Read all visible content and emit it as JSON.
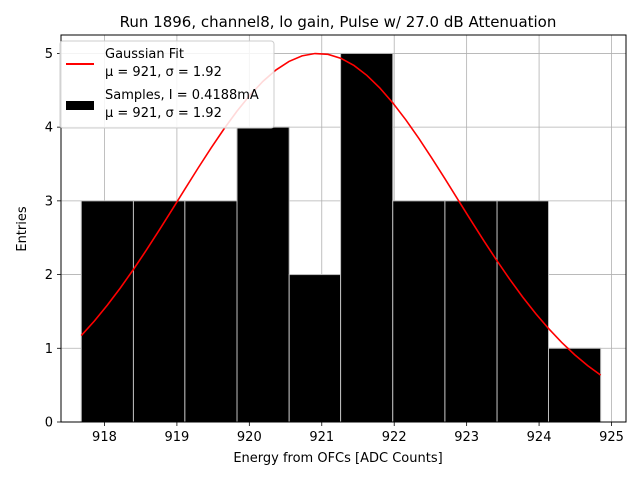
{
  "chart_data": {
    "type": "bar",
    "title": "Run 1896, channel8, lo gain, Pulse w/ 27.0 dB Attenuation",
    "xlabel": "Energy from OFCs [ADC Counts]",
    "ylabel": "Entries",
    "xlim": [
      917.4,
      925.2
    ],
    "ylim": [
      0,
      5.25
    ],
    "xticks": [
      918,
      919,
      920,
      921,
      922,
      923,
      924,
      925
    ],
    "yticks": [
      0,
      1,
      2,
      3,
      4,
      5
    ],
    "grid": true,
    "legend_position": "top-left",
    "histogram": {
      "name": "Samples, I = 0.4188mA",
      "stat_line": "μ = 921, σ = 1.92",
      "color": "#000000",
      "edgecolor": "#bdbdbd",
      "bins": [
        {
          "x0": 917.68,
          "x1": 918.4,
          "count": 3
        },
        {
          "x0": 918.4,
          "x1": 919.11,
          "count": 3
        },
        {
          "x0": 919.11,
          "x1": 919.83,
          "count": 3
        },
        {
          "x0": 919.83,
          "x1": 920.55,
          "count": 4
        },
        {
          "x0": 920.55,
          "x1": 921.26,
          "count": 2
        },
        {
          "x0": 921.26,
          "x1": 921.98,
          "count": 5
        },
        {
          "x0": 921.98,
          "x1": 922.7,
          "count": 3
        },
        {
          "x0": 922.7,
          "x1": 923.42,
          "count": 3
        },
        {
          "x0": 923.42,
          "x1": 924.13,
          "count": 3
        },
        {
          "x0": 924.13,
          "x1": 924.85,
          "count": 1
        }
      ]
    },
    "fit": {
      "name": "Gaussian Fit",
      "stat_line": "μ = 921, σ = 1.92",
      "color": "#ff0000",
      "amplitude": 5.0,
      "mu": 920.95,
      "sigma": 1.92,
      "x_range": [
        917.68,
        924.85
      ]
    }
  }
}
